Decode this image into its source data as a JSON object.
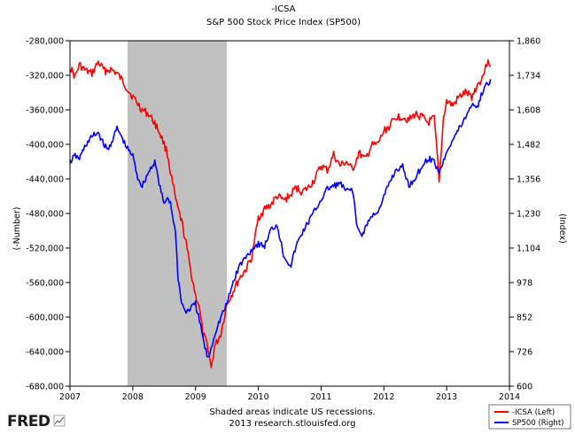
{
  "chart_data": {
    "type": "line",
    "title": "-ICSA",
    "subtitle": "S&P 500 Stock Price Index (SP500)",
    "ylabel_left": "(-Number)",
    "ylabel_right": "(Index)",
    "x_ticks": [
      "2007",
      "2008",
      "2009",
      "2010",
      "2011",
      "2012",
      "2013",
      "2014"
    ],
    "x_range": [
      2007.0,
      2014.0
    ],
    "left_ticks": [
      "-280,000",
      "-320,000",
      "-360,000",
      "-400,000",
      "-440,000",
      "-480,000",
      "-520,000",
      "-560,000",
      "-600,000",
      "-640,000",
      "-680,000"
    ],
    "left_range": [
      -680000,
      -280000
    ],
    "right_ticks": [
      "600",
      "726",
      "852",
      "978",
      "1,104",
      "1,230",
      "1,356",
      "1,482",
      "1,608",
      "1,734",
      "1,860"
    ],
    "right_range": [
      600,
      1860
    ],
    "recession": {
      "start": 2007.917,
      "end": 2009.5
    },
    "series": [
      {
        "name": "-ICSA (Left)",
        "axis": "left",
        "color": "#ff0000",
        "x": [
          2007.0,
          2007.08,
          2007.15,
          2007.25,
          2007.35,
          2007.45,
          2007.55,
          2007.65,
          2007.75,
          2007.85,
          2007.95,
          2008.05,
          2008.15,
          2008.25,
          2008.35,
          2008.45,
          2008.55,
          2008.62,
          2008.7,
          2008.78,
          2008.85,
          2008.92,
          2009.0,
          2009.05,
          2009.12,
          2009.2,
          2009.25,
          2009.3,
          2009.4,
          2009.5,
          2009.6,
          2009.7,
          2009.8,
          2009.9,
          2010.0,
          2010.1,
          2010.2,
          2010.3,
          2010.4,
          2010.5,
          2010.6,
          2010.7,
          2010.8,
          2010.9,
          2011.0,
          2011.1,
          2011.2,
          2011.3,
          2011.4,
          2011.5,
          2011.6,
          2011.7,
          2011.8,
          2011.9,
          2012.0,
          2012.1,
          2012.2,
          2012.3,
          2012.4,
          2012.5,
          2012.6,
          2012.7,
          2012.8,
          2012.85,
          2012.88,
          2012.95,
          2013.0,
          2013.1,
          2013.2,
          2013.3,
          2013.4,
          2013.5,
          2013.55,
          2013.62,
          2013.66,
          2013.7
        ],
        "values": [
          -310000,
          -322000,
          -308000,
          -315000,
          -318000,
          -305000,
          -315000,
          -313000,
          -318000,
          -328000,
          -340000,
          -350000,
          -360000,
          -365000,
          -375000,
          -390000,
          -410000,
          -440000,
          -470000,
          -490000,
          -515000,
          -545000,
          -575000,
          -585000,
          -620000,
          -635000,
          -660000,
          -635000,
          -620000,
          -585000,
          -570000,
          -555000,
          -545000,
          -530000,
          -485000,
          -475000,
          -470000,
          -460000,
          -465000,
          -460000,
          -450000,
          -455000,
          -450000,
          -440000,
          -425000,
          -430000,
          -412000,
          -425000,
          -420000,
          -430000,
          -410000,
          -418000,
          -402000,
          -400000,
          -385000,
          -378000,
          -368000,
          -368000,
          -372000,
          -365000,
          -368000,
          -375000,
          -370000,
          -412000,
          -445000,
          -368000,
          -350000,
          -355000,
          -345000,
          -340000,
          -345000,
          -330000,
          -325000,
          -312000,
          -300000,
          -310000
        ]
      },
      {
        "name": "SP500 (Right)",
        "axis": "right",
        "color": "#0000ff",
        "x": [
          2007.0,
          2007.08,
          2007.15,
          2007.25,
          2007.35,
          2007.45,
          2007.52,
          2007.6,
          2007.68,
          2007.75,
          2007.82,
          2007.9,
          2008.0,
          2008.08,
          2008.15,
          2008.25,
          2008.35,
          2008.42,
          2008.5,
          2008.55,
          2008.6,
          2008.68,
          2008.72,
          2008.78,
          2008.85,
          2008.9,
          2009.0,
          2009.08,
          2009.15,
          2009.2,
          2009.25,
          2009.32,
          2009.4,
          2009.5,
          2009.6,
          2009.7,
          2009.8,
          2009.9,
          2010.0,
          2010.1,
          2010.2,
          2010.3,
          2010.4,
          2010.45,
          2010.52,
          2010.6,
          2010.7,
          2010.8,
          2010.9,
          2011.0,
          2011.1,
          2011.2,
          2011.3,
          2011.4,
          2011.5,
          2011.58,
          2011.65,
          2011.75,
          2011.85,
          2011.95,
          2012.0,
          2012.1,
          2012.2,
          2012.3,
          2012.4,
          2012.5,
          2012.6,
          2012.7,
          2012.8,
          2012.88,
          2012.95,
          2013.0,
          2013.1,
          2013.2,
          2013.3,
          2013.4,
          2013.5,
          2013.55,
          2013.6,
          2013.65,
          2013.7
        ],
        "values": [
          1418,
          1440,
          1430,
          1480,
          1510,
          1525,
          1490,
          1460,
          1500,
          1540,
          1510,
          1470,
          1440,
          1360,
          1330,
          1380,
          1420,
          1340,
          1260,
          1290,
          1270,
          1160,
          1000,
          900,
          870,
          880,
          900,
          820,
          740,
          700,
          740,
          800,
          850,
          900,
          980,
          1040,
          1070,
          1100,
          1120,
          1110,
          1170,
          1190,
          1080,
          1060,
          1040,
          1110,
          1160,
          1200,
          1240,
          1280,
          1320,
          1330,
          1340,
          1310,
          1320,
          1170,
          1150,
          1200,
          1230,
          1250,
          1290,
          1350,
          1390,
          1400,
          1330,
          1360,
          1400,
          1430,
          1420,
          1380,
          1420,
          1460,
          1500,
          1540,
          1580,
          1630,
          1620,
          1660,
          1690,
          1700,
          1720
        ]
      }
    ],
    "legend_placement": "bottom-right",
    "grid": false
  },
  "footer": {
    "line1": "Shaded areas indicate US recessions.",
    "line2": "2013 research.stlouisfed.org",
    "logo": "FRED"
  }
}
